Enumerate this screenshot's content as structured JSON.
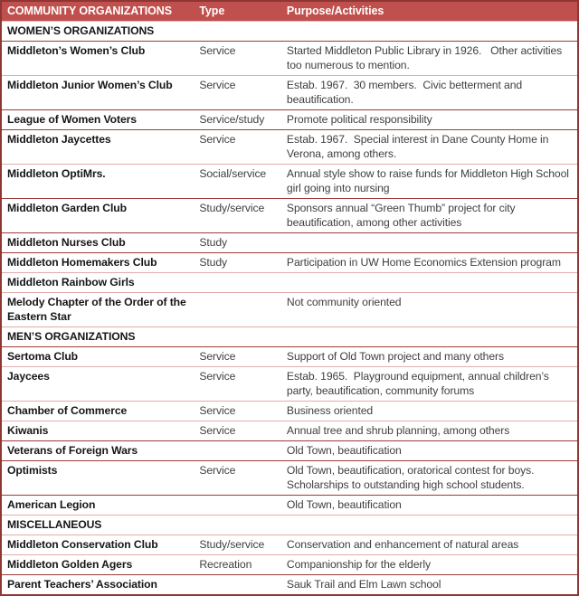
{
  "colors": {
    "header_bg": "#C0504D",
    "header_text": "#FFFFFF",
    "outer_border": "#8E3634",
    "divider_dark": "#9C3B38",
    "divider_light": "#E2ACA9",
    "name_text": "#161616",
    "body_text": "#3F3F3F"
  },
  "table": {
    "headers": [
      {
        "label": "COMMUNITY ORGANIZATIONS"
      },
      {
        "label": "Type"
      },
      {
        "label": "Purpose/Activities"
      }
    ],
    "rows": [
      {
        "kind": "section",
        "name": "WOMEN’S ORGANIZATIONS",
        "divider": "none"
      },
      {
        "kind": "data",
        "name": "Middleton’s Women’s Club",
        "type": "Service",
        "purpose": "Started Middleton Public Library in 1926.   Other activities too numerous to mention.",
        "divider": "dark"
      },
      {
        "kind": "data",
        "name": "Middleton Junior Women’s Club",
        "type": "Service",
        "purpose": "Estab. 1967.  30 members.  Civic betterment and beautification.",
        "divider": "light"
      },
      {
        "kind": "data",
        "name": "League of Women Voters",
        "type": "Service/study",
        "purpose": "Promote political responsibility",
        "divider": "dark"
      },
      {
        "kind": "data",
        "name": "Middleton Jaycettes",
        "type": "Service",
        "purpose": "Estab. 1967.  Special interest in Dane County Home in Verona, among others.",
        "divider": "dark"
      },
      {
        "kind": "data",
        "name": "Middleton OptiMrs.",
        "type": "Social/service",
        "purpose": "Annual style show to raise funds for Middleton High School girl going into nursing",
        "divider": "light"
      },
      {
        "kind": "data",
        "name": "Middleton Garden Club",
        "type": "Study/service",
        "purpose": "Sponsors annual “Green Thumb” project for city beautification, among other activities",
        "divider": "dark"
      },
      {
        "kind": "data",
        "name": "Middleton Nurses Club",
        "type": "Study",
        "purpose": "",
        "divider": "dark"
      },
      {
        "kind": "data",
        "name": "Middleton Homemakers Club",
        "type": "Study",
        "purpose": "Participation in UW Home Economics Extension program",
        "divider": "dark"
      },
      {
        "kind": "data",
        "name": "Middleton Rainbow Girls",
        "type": "",
        "purpose": "",
        "divider": "light"
      },
      {
        "kind": "data",
        "name": "Melody Chapter of the Order of the Eastern Star",
        "type": "",
        "purpose": "Not community oriented",
        "divider": "light"
      },
      {
        "kind": "section",
        "name": "MEN’S ORGANIZATIONS",
        "divider": "light"
      },
      {
        "kind": "data",
        "name": "Sertoma Club",
        "type": "Service",
        "purpose": "Support of Old Town project and many others",
        "divider": "dark"
      },
      {
        "kind": "data",
        "name": "Jaycees",
        "type": "Service",
        "purpose": "Estab. 1965.  Playground equipment, annual children’s party, beautification, community forums",
        "divider": "light"
      },
      {
        "kind": "data",
        "name": "Chamber of Commerce",
        "type": "Service",
        "purpose": "Business oriented",
        "divider": "light"
      },
      {
        "kind": "data",
        "name": "Kiwanis",
        "type": "Service",
        "purpose": "Annual tree and shrub planning, among others",
        "divider": "light"
      },
      {
        "kind": "data",
        "name": "Veterans of Foreign Wars",
        "type": "",
        "purpose": "Old Town, beautification",
        "divider": "dark"
      },
      {
        "kind": "data",
        "name": "Optimists",
        "type": "Service",
        "purpose": "Old Town, beautification, oratorical contest for boys.  Scholarships to outstanding high school students.",
        "divider": "dark"
      },
      {
        "kind": "data",
        "name": "American Legion",
        "type": "",
        "purpose": "Old Town, beautification",
        "divider": "dark"
      },
      {
        "kind": "section",
        "name": "MISCELLANEOUS",
        "divider": "light"
      },
      {
        "kind": "data",
        "name": "Middleton Conservation Club",
        "type": "Study/service",
        "purpose": "Conservation and enhancement of natural areas",
        "divider": "light"
      },
      {
        "kind": "data",
        "name": "Middleton Golden Agers",
        "type": "Recreation",
        "purpose": "Companionship for the elderly",
        "divider": "light"
      },
      {
        "kind": "data",
        "name": "Parent Teachers’ Association",
        "type": "",
        "purpose": "Sauk Trail and Elm Lawn school",
        "divider": "dark"
      }
    ]
  }
}
